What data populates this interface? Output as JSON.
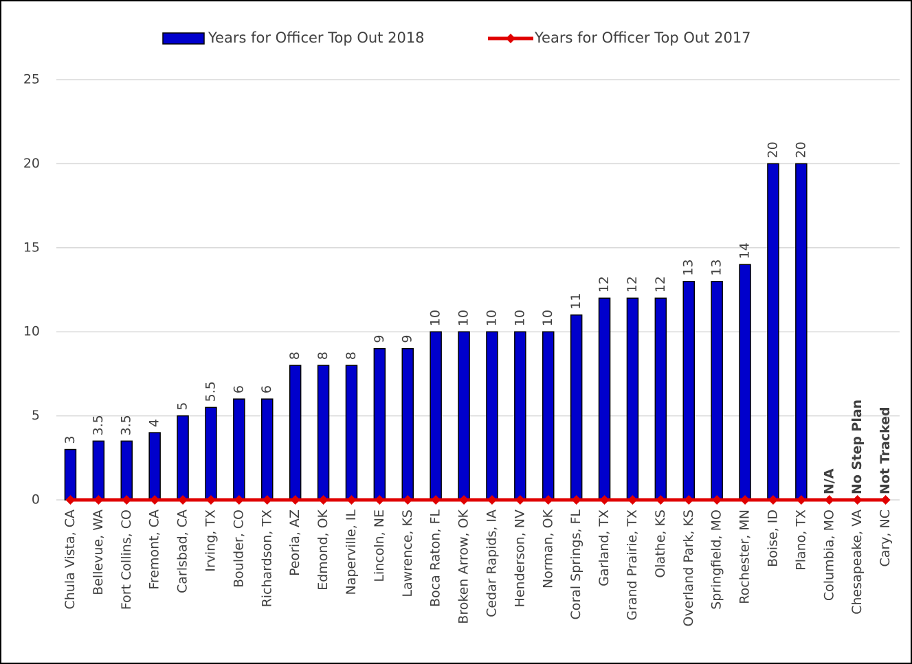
{
  "chart_data": {
    "type": "bar",
    "categories": [
      "Chula Vista, CA",
      "Bellevue, WA",
      "Fort Collins, CO",
      "Fremont, CA",
      "Carlsbad, CA",
      "Irving, TX",
      "Boulder, CO",
      "Richardson, TX",
      "Peoria, AZ",
      "Edmond, OK",
      "Naperville, IL",
      "Lincoln, NE",
      "Lawrence, KS",
      "Boca Raton, FL",
      "Broken Arrow, OK",
      "Cedar Rapids, IA",
      "Henderson, NV",
      "Norman, OK",
      "Coral Springs, FL",
      "Garland, TX",
      "Grand Prairie, TX",
      "Olathe, KS",
      "Overland Park, KS",
      "Springfield, MO",
      "Rochester, MN",
      "Boise, ID",
      "Plano, TX",
      "Columbia, MO",
      "Chesapeake, VA",
      "Cary, NC"
    ],
    "series": [
      {
        "name": "Years for Officer Top Out 2018",
        "type": "bar",
        "color": "#0000cc",
        "values": [
          3,
          3.5,
          3.5,
          4,
          5,
          5.5,
          6,
          6,
          8,
          8,
          8,
          9,
          9,
          10,
          10,
          10,
          10,
          10,
          11,
          12,
          12,
          12,
          13,
          13,
          14,
          20,
          20,
          null,
          null,
          null
        ],
        "value_labels": [
          "3",
          "3.5",
          "3.5",
          "4",
          "5",
          "5.5",
          "6",
          "6",
          "8",
          "8",
          "8",
          "9",
          "9",
          "10",
          "10",
          "10",
          "10",
          "10",
          "11",
          "12",
          "12",
          "12",
          "13",
          "13",
          "14",
          "20",
          "20",
          "N/A",
          "No Step Plan",
          "Not Tracked"
        ]
      },
      {
        "name": "Years for Officer Top Out 2017",
        "type": "line",
        "color": "#e00000",
        "values": [
          0,
          0,
          0,
          0,
          0,
          0,
          0,
          0,
          0,
          0,
          0,
          0,
          0,
          0,
          0,
          0,
          0,
          0,
          0,
          0,
          0,
          0,
          0,
          0,
          0,
          0,
          0,
          0,
          0,
          0
        ]
      }
    ],
    "ylim": [
      0,
      25
    ],
    "yticks": [
      0,
      5,
      10,
      15,
      20,
      25
    ],
    "grid": true,
    "legend": "top"
  }
}
